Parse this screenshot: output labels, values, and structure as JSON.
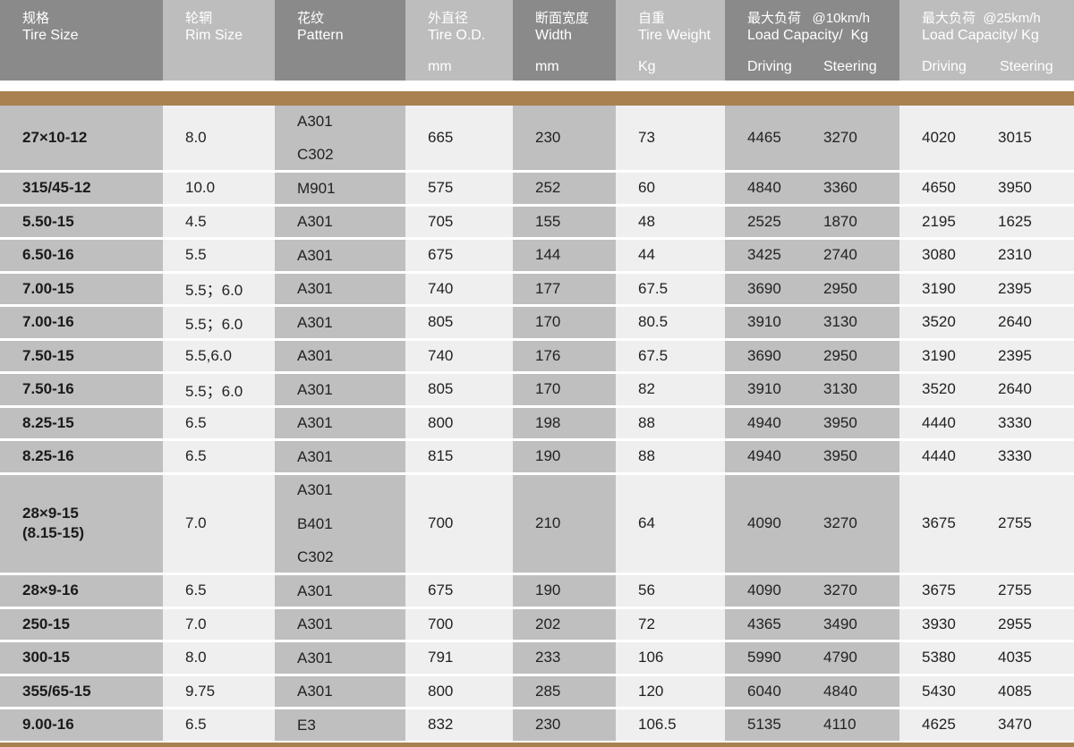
{
  "header": {
    "tire_size": {
      "cn": "规格",
      "en": "Tire Size"
    },
    "rim_size": {
      "cn": "轮辋",
      "en": "Rim Size"
    },
    "pattern": {
      "cn": "花纹",
      "en": "Pattern"
    },
    "tire_od": {
      "cn": "外直径",
      "en": "Tire O.D.",
      "unit": "mm"
    },
    "width": {
      "cn": "断面宽度",
      "en": "Width",
      "unit": "mm"
    },
    "weight": {
      "cn": "自重",
      "en": "Tire Weight",
      "unit": "Kg"
    },
    "load10": {
      "cn": "最大负荷   @10km/h",
      "en": "Load Capacity/  Kg",
      "driving": "Driving",
      "steering": "Steering"
    },
    "load25": {
      "cn": "最大负荷  @25km/h",
      "en": "Load Capacity/ Kg",
      "driving": "Driving",
      "steering": "Steering"
    }
  },
  "colors": {
    "accent": "#a8814f",
    "header_dark": "#8a8a8a",
    "header_light": "#bdbdbd",
    "cell_gray": "#bfbfbf",
    "cell_light": "#efefef"
  },
  "rows": [
    {
      "size": [
        "27×10-12"
      ],
      "rim": "8.0",
      "pattern": [
        "A301",
        "C302"
      ],
      "od": "665",
      "width": "230",
      "weight": "73",
      "d10": "4465",
      "s10": "3270",
      "d25": "4020",
      "s25": "3015"
    },
    {
      "size": [
        "315/45-12"
      ],
      "rim": "10.0",
      "pattern": [
        "M901"
      ],
      "od": "575",
      "width": "252",
      "weight": "60",
      "d10": "4840",
      "s10": "3360",
      "d25": "4650",
      "s25": "3950"
    },
    {
      "size": [
        "5.50-15"
      ],
      "rim": "4.5",
      "pattern": [
        "A301"
      ],
      "od": "705",
      "width": "155",
      "weight": "48",
      "d10": "2525",
      "s10": "1870",
      "d25": "2195",
      "s25": "1625"
    },
    {
      "size": [
        "6.50-16"
      ],
      "rim": "5.5",
      "pattern": [
        "A301"
      ],
      "od": "675",
      "width": "144",
      "weight": "44",
      "d10": "3425",
      "s10": "2740",
      "d25": "3080",
      "s25": "2310"
    },
    {
      "size": [
        "7.00-15"
      ],
      "rim": "5.5；6.0",
      "pattern": [
        "A301"
      ],
      "od": "740",
      "width": "177",
      "weight": "67.5",
      "d10": "3690",
      "s10": "2950",
      "d25": "3190",
      "s25": "2395"
    },
    {
      "size": [
        "7.00-16"
      ],
      "rim": "5.5；6.0",
      "pattern": [
        "A301"
      ],
      "od": "805",
      "width": "170",
      "weight": "80.5",
      "d10": "3910",
      "s10": "3130",
      "d25": "3520",
      "s25": "2640"
    },
    {
      "size": [
        "7.50-15"
      ],
      "rim": "5.5,6.0",
      "pattern": [
        "A301"
      ],
      "od": "740",
      "width": "176",
      "weight": "67.5",
      "d10": "3690",
      "s10": "2950",
      "d25": "3190",
      "s25": "2395"
    },
    {
      "size": [
        "7.50-16"
      ],
      "rim": "5.5；6.0",
      "pattern": [
        "A301"
      ],
      "od": "805",
      "width": "170",
      "weight": "82",
      "d10": "3910",
      "s10": "3130",
      "d25": "3520",
      "s25": "2640"
    },
    {
      "size": [
        "8.25-15"
      ],
      "rim": "6.5",
      "pattern": [
        "A301"
      ],
      "od": "800",
      "width": "198",
      "weight": "88",
      "d10": "4940",
      "s10": "3950",
      "d25": "4440",
      "s25": "3330"
    },
    {
      "size": [
        "8.25-16"
      ],
      "rim": "6.5",
      "pattern": [
        "A301"
      ],
      "od": "815",
      "width": "190",
      "weight": "88",
      "d10": "4940",
      "s10": "3950",
      "d25": "4440",
      "s25": "3330"
    },
    {
      "size": [
        "28×9-15",
        "(8.15-15)"
      ],
      "rim": "7.0",
      "pattern": [
        "A301",
        "B401",
        "C302"
      ],
      "od": "700",
      "width": "210",
      "weight": "64",
      "d10": "4090",
      "s10": "3270",
      "d25": "3675",
      "s25": "2755"
    },
    {
      "size": [
        "28×9-16"
      ],
      "rim": "6.5",
      "pattern": [
        "A301"
      ],
      "od": "675",
      "width": "190",
      "weight": "56",
      "d10": "4090",
      "s10": "3270",
      "d25": "3675",
      "s25": "2755"
    },
    {
      "size": [
        "250-15"
      ],
      "rim": "7.0",
      "pattern": [
        "A301"
      ],
      "od": "700",
      "width": "202",
      "weight": "72",
      "d10": "4365",
      "s10": "3490",
      "d25": "3930",
      "s25": "2955"
    },
    {
      "size": [
        "300-15"
      ],
      "rim": "8.0",
      "pattern": [
        "A301"
      ],
      "od": "791",
      "width": "233",
      "weight": "106",
      "d10": "5990",
      "s10": "4790",
      "d25": "5380",
      "s25": "4035"
    },
    {
      "size": [
        "355/65-15"
      ],
      "rim": "9.75",
      "pattern": [
        "A301"
      ],
      "od": "800",
      "width": "285",
      "weight": "120",
      "d10": "6040",
      "s10": "4840",
      "d25": "5430",
      "s25": "4085"
    },
    {
      "size": [
        "9.00-16"
      ],
      "rim": "6.5",
      "pattern": [
        "E3"
      ],
      "od": "832",
      "width": "230",
      "weight": "106.5",
      "d10": "5135",
      "s10": "4110",
      "d25": "4625",
      "s25": "3470"
    }
  ]
}
